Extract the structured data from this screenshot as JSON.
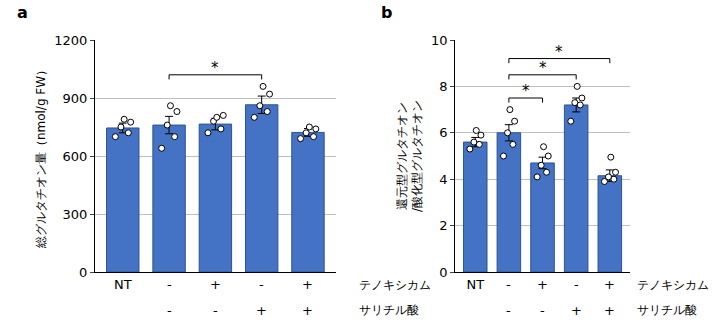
{
  "chart_data": [
    {
      "type": "bar",
      "panel": "a",
      "y_label": [
        "総グルタチオン量（nmol/g FW）"
      ],
      "categories": [
        "NT",
        null,
        null,
        null,
        null
      ],
      "values": [
        745,
        760,
        765,
        865,
        722
      ],
      "errors": [
        25,
        45,
        30,
        45,
        20
      ],
      "points": [
        [
          700,
          720,
          750,
          775,
          790
        ],
        [
          640,
          700,
          760,
          830,
          860
        ],
        [
          720,
          740,
          780,
          810,
          800
        ],
        [
          800,
          830,
          860,
          920,
          960
        ],
        [
          690,
          700,
          720,
          740,
          750
        ]
      ],
      "color": "#4472c4",
      "ylim": [
        0,
        1200
      ],
      "yticks": [
        0,
        300,
        600,
        900,
        1200
      ],
      "grid": true,
      "treatments": [
        {
          "name": "テノキシカム",
          "marks": [
            null,
            "-",
            "+",
            "-",
            "+"
          ]
        },
        {
          "name": "サリチル酸",
          "marks": [
            null,
            "-",
            "-",
            "+",
            "+"
          ]
        }
      ],
      "significance": [
        {
          "from": 1,
          "to": 3,
          "label": "*"
        }
      ]
    },
    {
      "type": "bar",
      "panel": "b",
      "y_label": [
        "還元型グルタチオン",
        "/酸化型グルタチオン"
      ],
      "categories": [
        "NT",
        null,
        null,
        null,
        null
      ],
      "values": [
        5.6,
        6.0,
        4.7,
        7.2,
        4.15
      ],
      "errors": [
        0.2,
        0.35,
        0.25,
        0.3,
        0.25
      ],
      "points": [
        [
          5.3,
          5.5,
          5.6,
          5.9,
          6.1
        ],
        [
          5.0,
          5.5,
          6.0,
          6.5,
          7.0
        ],
        [
          4.1,
          4.3,
          4.6,
          5.0,
          5.4
        ],
        [
          6.5,
          7.2,
          7.3,
          7.5,
          8.0
        ],
        [
          3.9,
          4.0,
          4.1,
          4.3,
          4.95
        ]
      ],
      "color": "#4472c4",
      "ylim": [
        0,
        10
      ],
      "yticks": [
        0,
        2,
        4,
        6,
        8,
        10
      ],
      "grid": true,
      "treatments": [
        {
          "name": "テノキシカム",
          "marks": [
            null,
            "-",
            "+",
            "-",
            "+"
          ]
        },
        {
          "name": "サリチル酸",
          "marks": [
            null,
            "-",
            "-",
            "+",
            "+"
          ]
        }
      ],
      "significance": [
        {
          "from": 1,
          "to": 2,
          "label": "*"
        },
        {
          "from": 1,
          "to": 3,
          "label": "*"
        },
        {
          "from": 1,
          "to": 4,
          "label": "*"
        }
      ]
    }
  ]
}
